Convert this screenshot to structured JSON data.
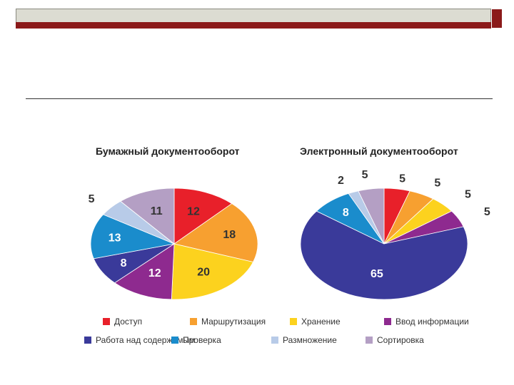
{
  "chart_data": [
    {
      "type": "pie",
      "title": "Бумажный документооборот",
      "slices": [
        {
          "label": "Доступ",
          "value": 12,
          "color": "#e8202a"
        },
        {
          "label": "Маршрутизация",
          "value": 18,
          "color": "#f7a030"
        },
        {
          "label": "Хранение",
          "value": 20,
          "color": "#fcd21e"
        },
        {
          "label": "Ввод информации",
          "value": 12,
          "color": "#8e2a8f"
        },
        {
          "label": "Работа над содержимым",
          "value": 8,
          "color": "#3a3a9a"
        },
        {
          "label": "Проверка",
          "value": 13,
          "color": "#1a8ccc"
        },
        {
          "label": "Размножение",
          "value": 5,
          "color": "#b8cbe8"
        },
        {
          "label": "Сортировка",
          "value": 11,
          "color": "#b49fc4"
        }
      ]
    },
    {
      "type": "pie",
      "title": "Электронный документооборот",
      "slices": [
        {
          "label": "Доступ",
          "value": 5,
          "color": "#e8202a"
        },
        {
          "label": "Маршрутизация",
          "value": 5,
          "color": "#f7a030"
        },
        {
          "label": "Хранение",
          "value": 5,
          "color": "#fcd21e"
        },
        {
          "label": "Ввод информации",
          "value": 5,
          "color": "#8e2a8f"
        },
        {
          "label": "Работа над содержимым",
          "value": 65,
          "color": "#3a3a9a"
        },
        {
          "label": "Проверка",
          "value": 8,
          "color": "#1a8ccc"
        },
        {
          "label": "Размножение",
          "value": 2,
          "color": "#b8cbe8"
        },
        {
          "label": "Сортировка",
          "value": 5,
          "color": "#b49fc4"
        }
      ]
    }
  ],
  "legend": [
    {
      "label": "Доступ",
      "color": "#e8202a"
    },
    {
      "label": "Маршрутизация",
      "color": "#f7a030"
    },
    {
      "label": "Хранение",
      "color": "#fcd21e"
    },
    {
      "label": "Ввод информации",
      "color": "#8e2a8f"
    },
    {
      "label": "Работа над содержимым",
      "color": "#3a3a9a"
    },
    {
      "label": "Проверка",
      "color": "#1a8ccc"
    },
    {
      "label": "Размножение",
      "color": "#b8cbe8"
    },
    {
      "label": "Сортировка",
      "color": "#b49fc4"
    }
  ]
}
